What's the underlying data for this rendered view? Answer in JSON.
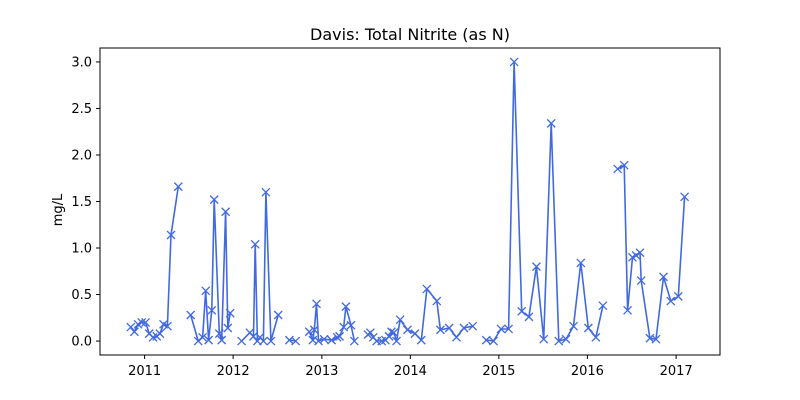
{
  "chart_data": {
    "type": "line",
    "title": "Davis: Total Nitrite (as N)",
    "xlabel": "",
    "ylabel": "mg/L",
    "x_axis": "date",
    "xlim": [
      "2010-07-01",
      "2017-07-01"
    ],
    "ylim": [
      -0.15,
      3.15
    ],
    "x_ticks": [
      "2011",
      "2012",
      "2013",
      "2014",
      "2015",
      "2016",
      "2017"
    ],
    "y_ticks": [
      "0.0",
      "0.5",
      "1.0",
      "1.5",
      "2.0",
      "2.5",
      "3.0"
    ],
    "grid": false,
    "legend": "none",
    "marker": "x",
    "color": "#4169E1",
    "segments": [
      [
        [
          "2010-11-05",
          0.15
        ],
        [
          "2010-11-20",
          0.1
        ],
        [
          "2010-12-05",
          0.18
        ],
        [
          "2010-12-20",
          0.2
        ],
        [
          "2011-01-05",
          0.2
        ],
        [
          "2011-01-20",
          0.08
        ],
        [
          "2011-02-05",
          0.04
        ],
        [
          "2011-02-20",
          0.05
        ],
        [
          "2011-03-05",
          0.08
        ],
        [
          "2011-03-20",
          0.18
        ],
        [
          "2011-04-05",
          0.16
        ],
        [
          "2011-04-20",
          1.14
        ],
        [
          "2011-05-20",
          1.66
        ]
      ],
      [
        [
          "2011-07-10",
          0.28
        ],
        [
          "2011-08-10",
          0.0
        ],
        [
          "2011-08-28",
          0.04
        ],
        [
          "2011-09-10",
          0.54
        ],
        [
          "2011-09-22",
          0.01
        ],
        [
          "2011-10-05",
          0.33
        ],
        [
          "2011-10-15",
          1.52
        ],
        [
          "2011-11-05",
          0.08
        ],
        [
          "2011-11-15",
          0.01
        ],
        [
          "2011-12-01",
          1.39
        ],
        [
          "2011-12-10",
          0.14
        ],
        [
          "2011-12-20",
          0.3
        ]
      ],
      [
        [
          "2012-02-05",
          0.0
        ],
        [
          "2012-03-10",
          0.09
        ],
        [
          "2012-03-25",
          0.05
        ],
        [
          "2012-04-01",
          1.04
        ],
        [
          "2012-04-10",
          0.0
        ],
        [
          "2012-04-20",
          0.04
        ],
        [
          "2012-05-05",
          0.0
        ],
        [
          "2012-05-15",
          1.6
        ],
        [
          "2012-06-05",
          0.0
        ],
        [
          "2012-07-05",
          0.28
        ]
      ],
      [
        [
          "2012-08-20",
          0.01
        ],
        [
          "2012-09-15",
          0.0
        ]
      ],
      [
        [
          "2012-11-10",
          0.1
        ],
        [
          "2012-11-25",
          0.01
        ],
        [
          "2012-12-01",
          0.12
        ],
        [
          "2012-12-10",
          0.4
        ],
        [
          "2012-12-18",
          0.0
        ],
        [
          "2013-01-10",
          0.02
        ],
        [
          "2013-02-10",
          0.01
        ],
        [
          "2013-03-05",
          0.04
        ],
        [
          "2013-03-15",
          0.05
        ],
        [
          "2013-04-01",
          0.15
        ],
        [
          "2013-04-10",
          0.37
        ],
        [
          "2013-05-01",
          0.17
        ],
        [
          "2013-05-15",
          0.0
        ]
      ],
      [
        [
          "2013-07-10",
          0.07
        ],
        [
          "2013-07-20",
          0.09
        ],
        [
          "2013-08-01",
          0.04
        ],
        [
          "2013-08-15",
          0.0
        ],
        [
          "2013-09-05",
          0.0
        ],
        [
          "2013-09-20",
          0.01
        ],
        [
          "2013-10-05",
          0.05
        ],
        [
          "2013-10-15",
          0.1
        ],
        [
          "2013-10-25",
          0.09
        ],
        [
          "2013-11-05",
          0.0
        ],
        [
          "2013-11-20",
          0.23
        ],
        [
          "2013-12-20",
          0.12
        ],
        [
          "2014-01-20",
          0.08
        ],
        [
          "2014-02-15",
          0.01
        ],
        [
          "2014-03-10",
          0.56
        ],
        [
          "2014-04-20",
          0.43
        ],
        [
          "2014-05-05",
          0.12
        ],
        [
          "2014-06-10",
          0.14
        ],
        [
          "2014-07-10",
          0.04
        ],
        [
          "2014-08-10",
          0.14
        ],
        [
          "2014-09-15",
          0.16
        ]
      ],
      [
        [
          "2014-11-10",
          0.01
        ],
        [
          "2014-12-10",
          0.0
        ],
        [
          "2015-01-10",
          0.13
        ],
        [
          "2015-02-10",
          0.13
        ],
        [
          "2015-03-05",
          3.0
        ],
        [
          "2015-04-05",
          0.32
        ],
        [
          "2015-05-05",
          0.26
        ],
        [
          "2015-06-05",
          0.8
        ],
        [
          "2015-07-05",
          0.02
        ],
        [
          "2015-08-05",
          2.34
        ],
        [
          "2015-09-05",
          0.0
        ],
        [
          "2015-10-05",
          0.02
        ],
        [
          "2015-11-05",
          0.16
        ],
        [
          "2015-12-05",
          0.84
        ],
        [
          "2016-01-05",
          0.14
        ],
        [
          "2016-02-05",
          0.04
        ],
        [
          "2016-03-05",
          0.38
        ]
      ],
      [
        [
          "2016-05-05",
          1.85
        ],
        [
          "2016-06-01",
          1.89
        ],
        [
          "2016-06-15",
          0.33
        ],
        [
          "2016-07-05",
          0.9
        ],
        [
          "2016-07-20",
          0.92
        ],
        [
          "2016-08-05",
          0.95
        ],
        [
          "2016-08-10",
          0.65
        ],
        [
          "2016-09-15",
          0.03
        ],
        [
          "2016-10-10",
          0.02
        ],
        [
          "2016-11-10",
          0.69
        ],
        [
          "2016-12-10",
          0.43
        ],
        [
          "2017-01-10",
          0.48
        ],
        [
          "2017-02-05",
          1.55
        ]
      ]
    ]
  }
}
